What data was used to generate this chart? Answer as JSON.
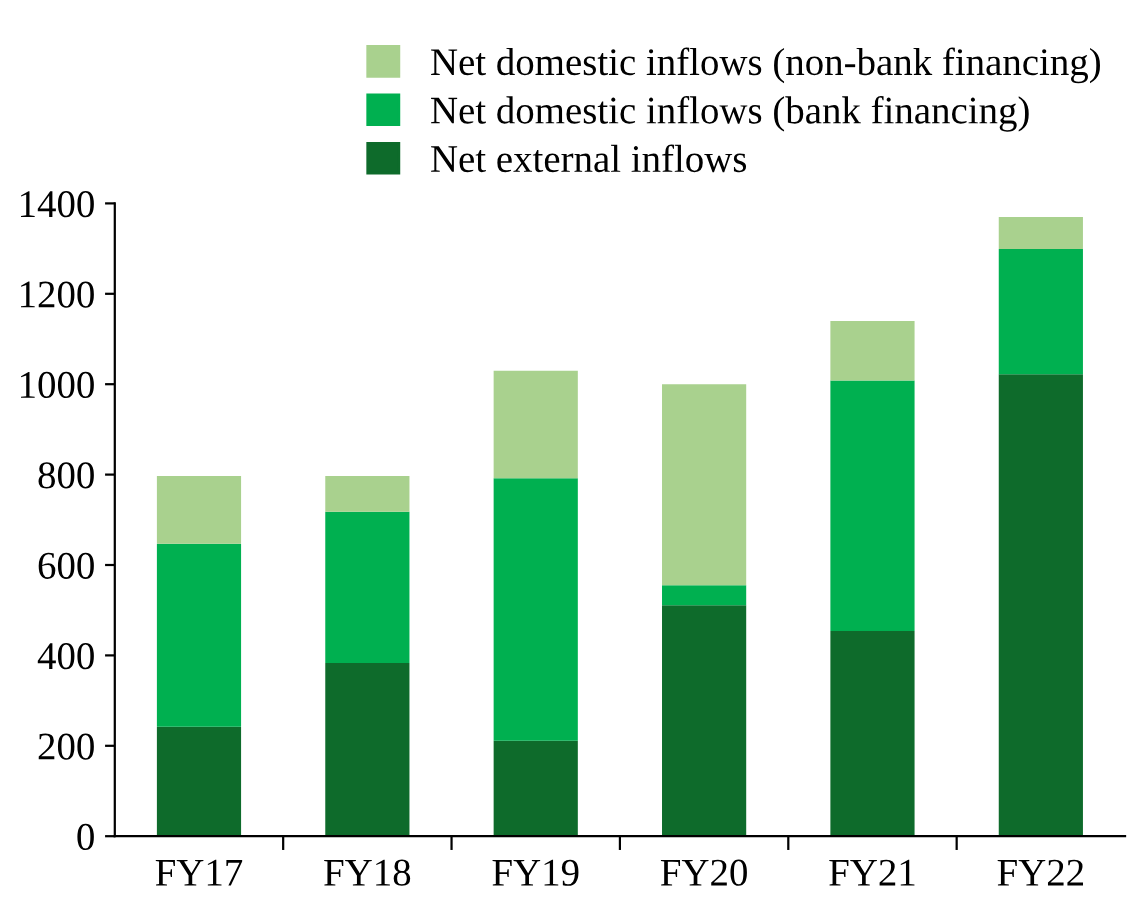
{
  "chart_data": {
    "type": "bar",
    "stacked": true,
    "categories": [
      "FY17",
      "FY18",
      "FY19",
      "FY20",
      "FY21",
      "FY22"
    ],
    "series": [
      {
        "name": "Net external inflows",
        "color": "#0e6b2b",
        "values": [
          242,
          383,
          211,
          511,
          454,
          1022
        ]
      },
      {
        "name": "Net domestic inflows (bank financing)",
        "color": "#00b050",
        "values": [
          405,
          335,
          581,
          44,
          554,
          277
        ]
      },
      {
        "name": "Net domestic inflows (non-bank financing)",
        "color": "#a9d18e",
        "values": [
          150,
          79,
          238,
          445,
          132,
          71
        ]
      }
    ],
    "ylim": [
      0,
      1400
    ],
    "yticks": [
      0,
      200,
      400,
      600,
      800,
      1000,
      1200,
      1400
    ],
    "grid": false,
    "legend": "top"
  }
}
